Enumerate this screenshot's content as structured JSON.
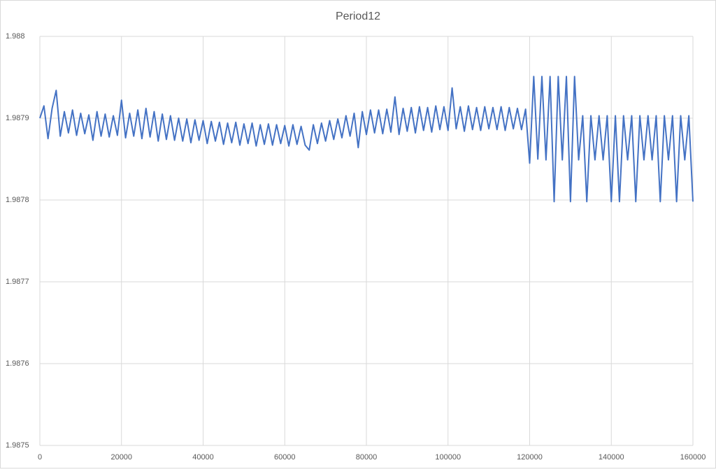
{
  "chart_data": {
    "type": "line",
    "title": "Period12",
    "color": "#4472c4",
    "grid": true,
    "xlim": [
      0,
      160000
    ],
    "xticks": [
      0,
      20000,
      40000,
      60000,
      80000,
      100000,
      120000,
      140000,
      160000
    ],
    "ylim": [
      1.9875,
      1.988
    ],
    "yticks": [
      1.9875,
      1.9876,
      1.9877,
      1.9878,
      1.9879,
      1.988
    ],
    "x": [
      0,
      1000,
      2000,
      3000,
      4000,
      5000,
      6000,
      7000,
      8000,
      9000,
      10000,
      11000,
      12000,
      13000,
      14000,
      15000,
      16000,
      17000,
      18000,
      19000,
      20000,
      21000,
      22000,
      23000,
      24000,
      25000,
      26000,
      27000,
      28000,
      29000,
      30000,
      31000,
      32000,
      33000,
      34000,
      35000,
      36000,
      37000,
      38000,
      39000,
      40000,
      41000,
      42000,
      43000,
      44000,
      45000,
      46000,
      47000,
      48000,
      49000,
      50000,
      51000,
      52000,
      53000,
      54000,
      55000,
      56000,
      57000,
      58000,
      59000,
      60000,
      61000,
      62000,
      63000,
      64000,
      65000,
      66000,
      67000,
      68000,
      69000,
      70000,
      71000,
      72000,
      73000,
      74000,
      75000,
      76000,
      77000,
      78000,
      79000,
      80000,
      81000,
      82000,
      83000,
      84000,
      85000,
      86000,
      87000,
      88000,
      89000,
      90000,
      91000,
      92000,
      93000,
      94000,
      95000,
      96000,
      97000,
      98000,
      99000,
      100000,
      101000,
      102000,
      103000,
      104000,
      105000,
      106000,
      107000,
      108000,
      109000,
      110000,
      111000,
      112000,
      113000,
      114000,
      115000,
      116000,
      117000,
      118000,
      119000,
      120000,
      121000,
      122000,
      123000,
      124000,
      125000,
      126000,
      127000,
      128000,
      129000,
      130000,
      131000,
      132000,
      133000,
      134000,
      135000,
      136000,
      137000,
      138000,
      139000,
      140000,
      141000,
      142000,
      143000,
      144000,
      145000,
      146000,
      147000,
      148000,
      149000,
      150000,
      151000,
      152000,
      153000,
      154000,
      155000,
      156000,
      157000,
      158000,
      159000,
      160000
    ],
    "values": [
      1.9879,
      1.987915,
      1.987875,
      1.987912,
      1.987934,
      1.987878,
      1.987908,
      1.987882,
      1.98791,
      1.987879,
      1.987906,
      1.987881,
      1.987904,
      1.987873,
      1.987908,
      1.987878,
      1.987905,
      1.987877,
      1.987903,
      1.987879,
      1.987922,
      1.987876,
      1.987906,
      1.987878,
      1.98791,
      1.987875,
      1.987912,
      1.987877,
      1.987908,
      1.987872,
      1.987905,
      1.987874,
      1.987903,
      1.987873,
      1.9879,
      1.987872,
      1.987899,
      1.98787,
      1.987898,
      1.987873,
      1.987897,
      1.987869,
      1.987896,
      1.987872,
      1.987895,
      1.987868,
      1.987894,
      1.98787,
      1.987895,
      1.987867,
      1.987893,
      1.987869,
      1.987894,
      1.987866,
      1.987892,
      1.987868,
      1.987893,
      1.987867,
      1.987892,
      1.987869,
      1.987891,
      1.987866,
      1.987892,
      1.987868,
      1.98789,
      1.987867,
      1.987861,
      1.987892,
      1.987869,
      1.987894,
      1.987872,
      1.987897,
      1.987874,
      1.987899,
      1.987876,
      1.987903,
      1.987878,
      1.987906,
      1.987864,
      1.987908,
      1.98788,
      1.98791,
      1.987882,
      1.98791,
      1.987881,
      1.987911,
      1.987883,
      1.987926,
      1.98788,
      1.987912,
      1.987884,
      1.987913,
      1.987882,
      1.987914,
      1.987885,
      1.987913,
      1.987883,
      1.987915,
      1.987886,
      1.987914,
      1.987885,
      1.987937,
      1.987887,
      1.987914,
      1.987884,
      1.987915,
      1.987886,
      1.987913,
      1.987885,
      1.987914,
      1.987887,
      1.987913,
      1.987886,
      1.987914,
      1.987885,
      1.987913,
      1.987887,
      1.987912,
      1.987886,
      1.987911,
      1.987845,
      1.987951,
      1.98785,
      1.987951,
      1.987849,
      1.987951,
      1.987798,
      1.987951,
      1.987849,
      1.987951,
      1.987798,
      1.987951,
      1.987849,
      1.987903,
      1.987798,
      1.987903,
      1.987849,
      1.987903,
      1.987849,
      1.987903,
      1.987798,
      1.987903,
      1.987798,
      1.987903,
      1.987849,
      1.987903,
      1.987798,
      1.987903,
      1.987849,
      1.987903,
      1.987849,
      1.987903,
      1.987798,
      1.987903,
      1.987849,
      1.987903,
      1.987798,
      1.987903,
      1.987849,
      1.987903,
      1.987798
    ]
  }
}
